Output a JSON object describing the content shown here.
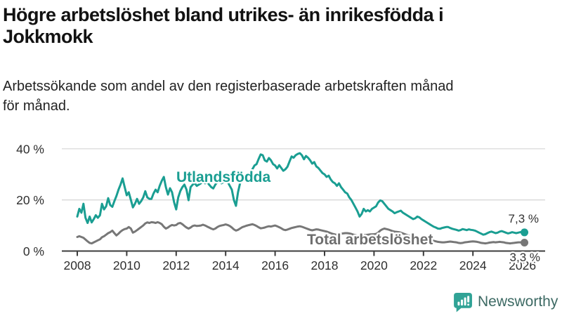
{
  "title_lines": [
    "Högre arbetslöshet bland utrikes- än inrikesfödda i",
    "Jokkmokk"
  ],
  "subtitle_lines": [
    "Arbetssökande som andel av den registerbaserade arbetskraften månad",
    "för månad."
  ],
  "colors": {
    "foreign_born_line": "#1a9e92",
    "total_line": "#777777",
    "total_label": "#6e6e6e",
    "gridline": "#d8d8d8",
    "axis": "#3c3c3c",
    "tick_text": "#2f2f2f",
    "end_label_text": "#333333"
  },
  "chart_data": {
    "type": "line",
    "title": "Högre arbetslöshet bland utrikes- än inrikesfödda i Jokkmokk",
    "subtitle": "Arbetssökande som andel av den registerbaserade arbetskraften månad för månad.",
    "grid": "horizontal-only",
    "x_axis": {
      "ticks": [
        2008,
        2010,
        2012,
        2014,
        2016,
        2018,
        2020,
        2022,
        2024,
        2026
      ],
      "tick_labels": [
        "2008",
        "2010",
        "2012",
        "2014",
        "2016",
        "2018",
        "2020",
        "2022",
        "2024",
        "2026"
      ],
      "range": [
        2007.3,
        2026.9
      ]
    },
    "y_axis": {
      "ticks": [
        0,
        20,
        40
      ],
      "tick_labels": [
        "0 %",
        "20 %",
        "40 %"
      ],
      "range": [
        0,
        45
      ],
      "unit": "%"
    },
    "start_year": 2008,
    "start_month": 1,
    "frequency": "monthly",
    "series": [
      {
        "name": "Utlandsfödda",
        "color": "#1a9e92",
        "end_label": "7,3 %",
        "end_value": 7.3,
        "values": [
          13.5,
          16.5,
          15.0,
          18.5,
          13.0,
          11.0,
          13.5,
          11.2,
          12.5,
          14.0,
          13.0,
          14.0,
          18.5,
          16.3,
          17.5,
          20.7,
          18.0,
          17.3,
          19.5,
          21.5,
          24.0,
          26.0,
          28.4,
          25.0,
          21.8,
          23.0,
          20.0,
          17.1,
          18.5,
          20.4,
          18.5,
          19.5,
          21.0,
          23.4,
          21.0,
          20.4,
          20.4,
          22.5,
          24.0,
          23.0,
          25.5,
          27.5,
          29.0,
          25.0,
          22.1,
          24.6,
          23.0,
          19.0,
          16.3,
          21.0,
          23.5,
          25.0,
          26.0,
          24.0,
          19.9,
          25.0,
          26.0,
          26.5,
          25.5,
          26.0,
          26.5,
          27.5,
          26.5,
          27.0,
          26.0,
          25.0,
          24.5,
          26.0,
          27.0,
          27.5,
          26.5,
          27.0,
          28.0,
          27.0,
          25.5,
          24.0,
          20.0,
          17.7,
          23.0,
          26.5,
          27.5,
          28.5,
          28.0,
          29.0,
          30.0,
          32.0,
          33.5,
          34.0,
          36.0,
          37.8,
          37.5,
          35.5,
          35.0,
          36.4,
          35.5,
          34.0,
          33.5,
          32.3,
          33.6,
          32.5,
          31.4,
          32.0,
          33.0,
          35.0,
          37.0,
          36.5,
          37.5,
          38.0,
          38.3,
          37.5,
          35.9,
          37.2,
          36.5,
          35.5,
          34.2,
          34.8,
          33.1,
          32.5,
          31.5,
          30.5,
          30.0,
          29.0,
          29.5,
          28.0,
          27.0,
          26.5,
          25.5,
          26.5,
          25.0,
          24.0,
          23.0,
          22.5,
          21.0,
          20.0,
          18.5,
          17.0,
          15.5,
          13.5,
          14.5,
          16.5,
          15.5,
          16.0,
          15.5,
          16.5,
          17.0,
          17.5,
          19.0,
          19.8,
          19.5,
          18.5,
          17.5,
          16.5,
          16.0,
          15.5,
          14.8,
          15.2,
          15.5,
          15.8,
          15.0,
          14.5,
          14.0,
          13.5,
          13.0,
          12.5,
          12.8,
          13.5,
          13.2,
          12.5,
          12.0,
          11.5,
          11.0,
          10.5,
          10.0,
          9.5,
          9.2,
          8.8,
          8.7,
          9.0,
          9.2,
          9.4,
          9.4,
          9.0,
          8.7,
          8.5,
          8.3,
          8.0,
          8.2,
          8.6,
          8.4,
          8.2,
          8.5,
          8.3,
          8.2,
          8.0,
          7.6,
          7.2,
          6.8,
          6.4,
          6.6,
          7.0,
          7.4,
          7.6,
          7.3,
          7.0,
          7.2,
          7.6,
          7.8,
          7.5,
          7.2,
          6.9,
          7.1,
          7.4,
          7.2,
          7.0,
          7.2,
          7.4,
          7.5,
          7.3
        ]
      },
      {
        "name": "Total arbetslöshet",
        "color": "#777777",
        "end_label": "3,3 %",
        "end_value": 3.3,
        "values": [
          5.5,
          5.8,
          5.5,
          5.2,
          4.5,
          3.8,
          3.2,
          3.0,
          3.4,
          3.8,
          4.2,
          4.6,
          5.4,
          5.8,
          6.4,
          7.0,
          7.4,
          8.0,
          7.0,
          6.1,
          6.8,
          7.6,
          8.2,
          8.6,
          8.8,
          9.4,
          8.8,
          7.2,
          7.6,
          8.2,
          8.8,
          9.4,
          10.0,
          10.8,
          11.2,
          11.0,
          11.3,
          11.2,
          11.0,
          11.3,
          11.0,
          10.5,
          9.5,
          8.8,
          9.2,
          9.8,
          10.2,
          10.0,
          10.2,
          10.8,
          11.0,
          10.5,
          9.8,
          9.2,
          8.8,
          9.2,
          9.8,
          10.0,
          9.8,
          9.9,
          10.0,
          10.3,
          10.0,
          9.6,
          9.2,
          8.8,
          8.5,
          8.8,
          9.4,
          9.8,
          10.0,
          10.2,
          10.4,
          10.2,
          9.8,
          9.2,
          8.5,
          8.0,
          8.3,
          8.8,
          9.3,
          9.6,
          9.9,
          10.1,
          10.3,
          10.5,
          10.2,
          9.8,
          9.3,
          8.9,
          9.0,
          9.2,
          9.5,
          9.7,
          9.6,
          9.8,
          10.0,
          9.7,
          9.3,
          8.9,
          8.4,
          8.2,
          8.4,
          8.7,
          9.0,
          9.2,
          9.4,
          9.6,
          9.7,
          9.5,
          9.2,
          8.9,
          8.6,
          8.3,
          8.1,
          8.3,
          8.5,
          8.4,
          8.2,
          8.0,
          7.8,
          7.6,
          7.3,
          7.0,
          6.7,
          6.5,
          6.4,
          6.6,
          6.8,
          6.9,
          7.0,
          7.0,
          6.9,
          6.7,
          6.4,
          6.2,
          6.0,
          5.9,
          6.0,
          6.2,
          6.3,
          6.4,
          6.5,
          6.5,
          6.6,
          6.7,
          7.2,
          8.0,
          8.5,
          8.8,
          8.6,
          8.4,
          8.1,
          7.8,
          7.6,
          7.5,
          7.4,
          7.2,
          6.9,
          6.6,
          6.3,
          6.0,
          5.8,
          5.6,
          5.5,
          5.4,
          5.3,
          5.2,
          5.0,
          4.8,
          4.6,
          4.4,
          4.2,
          4.0,
          3.8,
          3.6,
          3.5,
          3.4,
          3.4,
          3.5,
          3.6,
          3.7,
          3.6,
          3.5,
          3.4,
          3.2,
          3.1,
          3.2,
          3.4,
          3.5,
          3.6,
          3.7,
          3.8,
          3.7,
          3.6,
          3.4,
          3.2,
          3.1,
          3.0,
          3.1,
          3.3,
          3.4,
          3.5,
          3.4,
          3.5,
          3.6,
          3.5,
          3.4,
          3.2,
          3.1,
          3.0,
          3.1,
          3.2,
          3.3,
          3.4,
          3.4,
          3.4,
          3.3
        ]
      }
    ]
  },
  "branding": {
    "logo_text": "Newsworthy",
    "logo_icon": "newsworthy-speech-bubble-bar-chart-icon",
    "icon_color": "#31a396",
    "text_color": "#3d6a64"
  }
}
